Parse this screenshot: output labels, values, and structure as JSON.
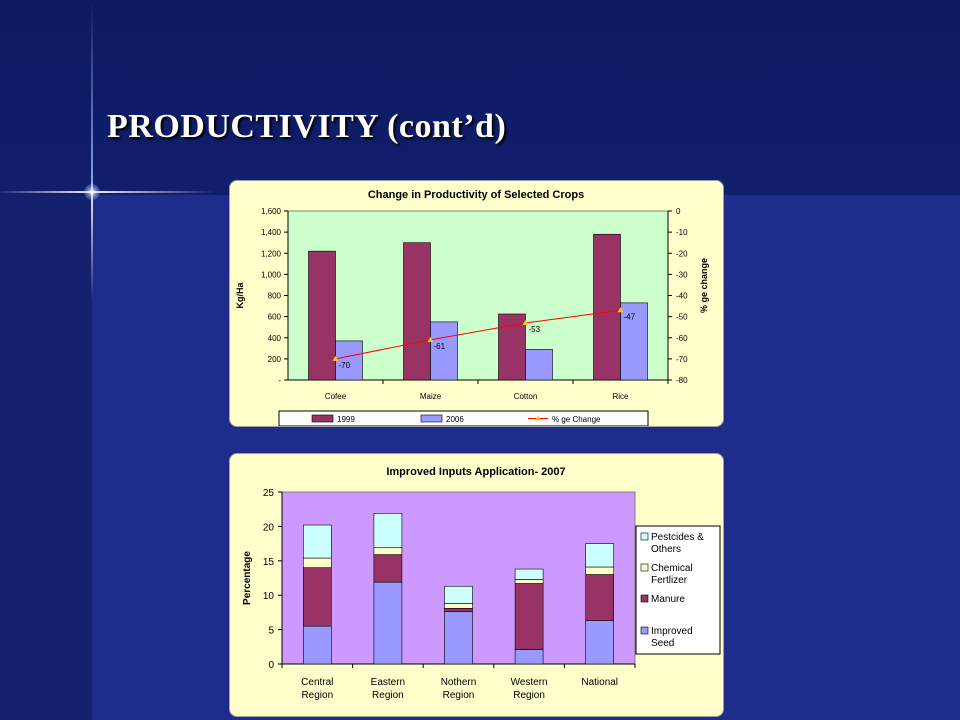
{
  "slide": {
    "title": "PRODUCTIVITY (cont’d)"
  },
  "chart_data": [
    {
      "type": "bar",
      "title": "Change in Productivity of Selected Crops",
      "categories": [
        "Cofee",
        "Maize",
        "Cotton",
        "Rice"
      ],
      "ylabel": "Kg/Ha",
      "y2label": "% ge change",
      "ylim": [
        0,
        1600
      ],
      "y2lim": [
        -80,
        0
      ],
      "y_ticks": [
        "-",
        "200",
        "400",
        "600",
        "800",
        "1,000",
        "1,200",
        "1,400",
        "1,600"
      ],
      "y2_ticks": [
        "0",
        "-10",
        "-20",
        "-30",
        "-40",
        "-50",
        "-60",
        "-70",
        "-80"
      ],
      "series": [
        {
          "name": "1999",
          "type": "bar",
          "axis": "left",
          "color": "#993366",
          "values": [
            1220,
            1300,
            625,
            1380
          ]
        },
        {
          "name": "2006",
          "type": "bar",
          "axis": "left",
          "color": "#9999ff",
          "values": [
            370,
            550,
            290,
            730
          ]
        },
        {
          "name": "% ge Change",
          "type": "line",
          "axis": "right",
          "color": "#ff0000",
          "marker_color": "#ffcc00",
          "values": [
            -70,
            -61,
            -53,
            -47
          ]
        }
      ],
      "data_labels": [
        "-70",
        "-61",
        "-53",
        "-47"
      ],
      "plot_background": "#ccffcc",
      "legend": "bottom"
    },
    {
      "type": "bar",
      "stacked": true,
      "title": "Improved Inputs Application- 2007",
      "categories": [
        [
          "Central",
          "Region"
        ],
        [
          "Eastern",
          "Region"
        ],
        [
          "Nothern",
          "Region"
        ],
        [
          "Western",
          "Region"
        ],
        [
          "National"
        ]
      ],
      "ylabel": "Percentage",
      "ylim": [
        0,
        25
      ],
      "y_ticks": [
        "0",
        "5",
        "10",
        "15",
        "20",
        "25"
      ],
      "series": [
        {
          "name": "Improved Seed",
          "legend_lines": [
            "Improved",
            "Seed"
          ],
          "color": "#9999ff",
          "values": [
            5.5,
            11.9,
            7.6,
            2.1,
            6.3
          ]
        },
        {
          "name": "Manure",
          "legend_lines": [
            "Manure"
          ],
          "color": "#993366",
          "values": [
            8.5,
            4.0,
            0.5,
            9.6,
            6.7
          ]
        },
        {
          "name": "Chemical Fertlizer",
          "legend_lines": [
            "Chemical",
            "Fertlizer"
          ],
          "color": "#ffffcc",
          "values": [
            1.4,
            1.0,
            0.7,
            0.6,
            1.1
          ]
        },
        {
          "name": "Pestcides & Others",
          "legend_lines": [
            "Pestcides &",
            "Others"
          ],
          "color": "#ccffff",
          "values": [
            4.8,
            5.0,
            2.5,
            1.5,
            3.4
          ]
        }
      ],
      "plot_background": "#cc99ff",
      "legend": "right"
    }
  ]
}
